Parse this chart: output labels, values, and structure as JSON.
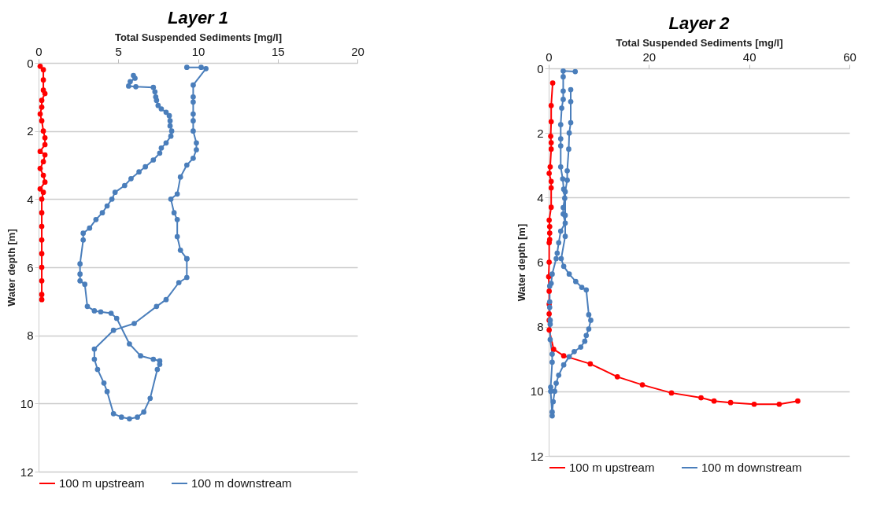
{
  "chart_data": [
    {
      "type": "line",
      "title": "Layer 1",
      "xlabel": "Total Suspended Sediments [mg/l]",
      "ylabel": "Water depth [m]",
      "xlim": [
        0,
        20
      ],
      "xticks": [
        0,
        5,
        10,
        15,
        20
      ],
      "ylim": [
        12,
        0
      ],
      "yticks": [
        0,
        2,
        4,
        6,
        8,
        10,
        12
      ],
      "grid": "y",
      "legend": "bottom",
      "marker": "circle",
      "series": [
        {
          "name": "100 m upstream",
          "color": "#ff0000",
          "x": [
            0.1,
            0.3,
            0.3,
            0.3,
            0.4,
            0.2,
            0.2,
            0.1,
            0.2,
            0.3,
            0.4,
            0.4,
            0.1,
            0.4,
            0.3,
            0.1,
            0.3,
            0.4,
            0.1,
            0.3,
            0.2,
            0.2,
            0.2,
            0.2,
            0.2,
            0.2,
            0.2,
            0.2,
            0.2
          ],
          "values": [
            0.1,
            0.2,
            0.5,
            0.8,
            0.9,
            1.1,
            1.3,
            1.5,
            1.7,
            2.0,
            2.2,
            2.4,
            2.6,
            2.7,
            2.9,
            3.1,
            3.3,
            3.5,
            3.7,
            3.8,
            4.0,
            4.4,
            4.8,
            5.2,
            5.6,
            6.0,
            6.4,
            6.8,
            6.95
          ]
        },
        {
          "name": "100 m downstream",
          "color": "#4a7ebb",
          "x": [
            5.95,
            6.05,
            5.75,
            5.65,
            6.1,
            7.2,
            7.3,
            7.35,
            7.4,
            7.5,
            7.7,
            8.0,
            8.2,
            8.25,
            8.25,
            8.35,
            8.3,
            8.0,
            7.7,
            7.6,
            7.2,
            6.7,
            6.3,
            5.8,
            5.4,
            4.8,
            4.6,
            4.3,
            4.0,
            3.6,
            3.2,
            2.8,
            2.8,
            2.6,
            2.6,
            2.6,
            2.9,
            3.06,
            3.5,
            3.9,
            4.55,
            4.9,
            5.7,
            6.4,
            7.2,
            7.6,
            7.6,
            7.45,
            7.0,
            6.6,
            6.2,
            5.7,
            5.2,
            4.7,
            4.3,
            4.1,
            3.7,
            3.5,
            3.5,
            4.7,
            6.0,
            7.4,
            8.0,
            8.8,
            9.3,
            9.3,
            9.3,
            8.9,
            8.7,
            8.7,
            8.5,
            8.3,
            8.7,
            8.9,
            9.3,
            9.7,
            9.9,
            9.9,
            9.7,
            9.7,
            9.7,
            9.7,
            9.7,
            9.7,
            10.5,
            10.2,
            9.3
          ],
          "values": [
            0.37,
            0.45,
            0.55,
            0.68,
            0.7,
            0.72,
            0.85,
            1.0,
            1.1,
            1.25,
            1.35,
            1.45,
            1.55,
            1.7,
            1.85,
            2.0,
            2.15,
            2.35,
            2.5,
            2.65,
            2.85,
            3.05,
            3.2,
            3.4,
            3.6,
            3.8,
            4.0,
            4.2,
            4.4,
            4.6,
            4.85,
            5.0,
            5.2,
            5.9,
            6.2,
            6.4,
            6.5,
            7.15,
            7.28,
            7.31,
            7.35,
            7.5,
            8.25,
            8.6,
            8.7,
            8.75,
            8.85,
            9.0,
            9.85,
            10.25,
            10.4,
            10.45,
            10.4,
            10.3,
            9.65,
            9.4,
            9.0,
            8.7,
            8.4,
            7.85,
            7.65,
            7.15,
            6.95,
            6.45,
            6.3,
            5.75,
            5.75,
            5.5,
            5.1,
            4.6,
            4.4,
            4.0,
            3.85,
            3.35,
            3.0,
            2.8,
            2.55,
            2.35,
            2.0,
            1.7,
            1.5,
            1.15,
            1.0,
            0.65,
            0.17,
            0.13,
            0.13
          ]
        }
      ]
    },
    {
      "type": "line",
      "title": "Layer 2",
      "xlabel": "Total Suspended Sediments [mg/l]",
      "ylabel": "Water depth [m]",
      "xlim": [
        0,
        60
      ],
      "xticks": [
        0,
        20,
        40,
        60
      ],
      "ylim": [
        12,
        0
      ],
      "yticks": [
        0,
        2,
        4,
        6,
        8,
        10,
        12
      ],
      "grid": "y",
      "legend": "bottom",
      "marker": "circle",
      "series": [
        {
          "name": "100 m upstream",
          "color": "#ff0000",
          "x": [
            0.8,
            0.5,
            0.5,
            0.4,
            0.5,
            0.5,
            0.3,
            0.1,
            0.5,
            0.5,
            0.5,
            0.1,
            0.2,
            0.2,
            0.2,
            0.1,
            0.1,
            0.0,
            0.1,
            0.1,
            0.1,
            0.1,
            0.1,
            1.0,
            3.0,
            8.3,
            13.7,
            18.7,
            24.5,
            30.4,
            33.0,
            36.3,
            41.0,
            46.0,
            49.7
          ],
          "values": [
            0.45,
            1.15,
            1.65,
            2.1,
            2.3,
            2.5,
            3.05,
            3.25,
            3.5,
            3.7,
            4.3,
            4.7,
            4.9,
            5.1,
            5.3,
            5.4,
            6.0,
            6.45,
            6.9,
            7.3,
            7.6,
            7.8,
            8.1,
            8.7,
            8.9,
            9.15,
            9.55,
            9.8,
            10.05,
            10.2,
            10.3,
            10.35,
            10.4,
            10.4,
            10.3
          ]
        },
        {
          "name": "100 m downstream",
          "color": "#4a7ebb",
          "x": [
            5.3,
            2.9,
            2.9,
            2.9,
            2.9,
            2.6,
            2.4,
            2.4,
            2.4,
            2.4,
            2.8,
            3.0,
            3.2,
            2.9,
            2.9,
            3.3,
            2.4,
            2.0,
            1.7,
            1.5,
            0.7,
            0.5,
            0.2,
            0.2,
            0.2,
            0.3,
            0.3,
            0.3,
            0.7,
            0.7,
            0.4,
            0.4,
            0.7,
            0.7,
            0.9,
            1.2,
            1.5,
            2.0,
            3.0,
            4.1,
            5.1,
            6.4,
            7.2,
            7.5,
            8.0,
            8.4,
            8.0,
            7.5,
            6.6,
            5.4,
            4.1,
            3.0,
            2.5,
            3.3,
            3.3,
            3.3,
            3.7,
            3.7,
            4.0,
            4.1,
            4.4,
            4.4,
            4.4
          ],
          "values": [
            0.1,
            0.08,
            0.26,
            0.7,
            0.96,
            1.23,
            1.74,
            2.18,
            2.4,
            3.05,
            3.42,
            3.74,
            4.02,
            4.31,
            4.51,
            4.79,
            5.04,
            5.4,
            5.72,
            5.89,
            6.37,
            6.66,
            6.74,
            7.23,
            7.4,
            7.8,
            7.92,
            8.4,
            8.85,
            9.1,
            9.87,
            10.0,
            10.76,
            10.64,
            10.32,
            10.0,
            9.75,
            9.5,
            9.18,
            8.93,
            8.77,
            8.63,
            8.45,
            8.27,
            8.07,
            7.8,
            7.63,
            6.86,
            6.78,
            6.6,
            6.37,
            6.13,
            5.89,
            5.2,
            4.55,
            3.82,
            3.46,
            3.17,
            2.5,
            2.0,
            1.68,
            1.03,
            0.66
          ]
        }
      ]
    }
  ]
}
